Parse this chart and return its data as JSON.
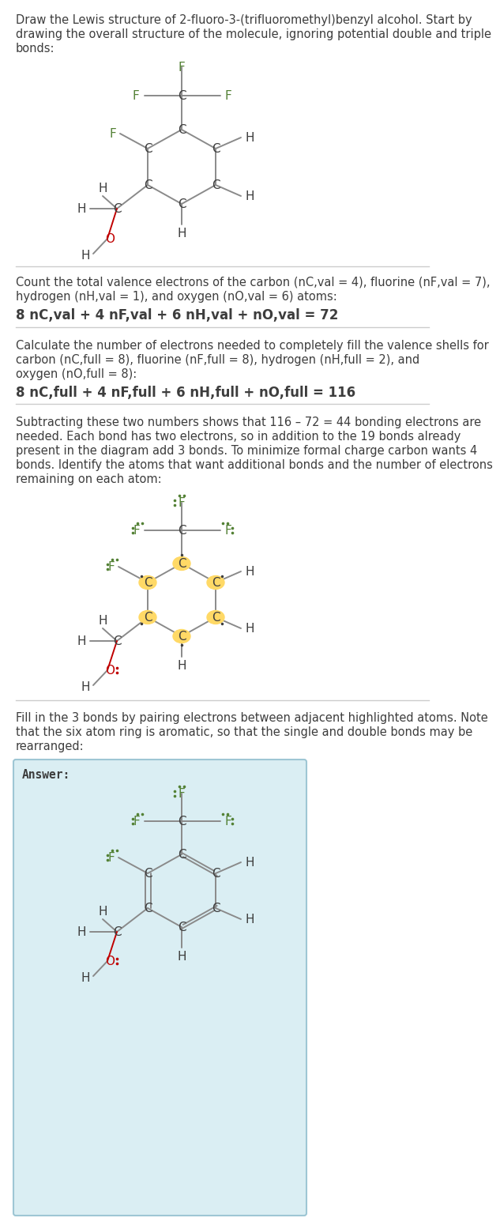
{
  "bg_color": "#ffffff",
  "text_color": "#3d3d3d",
  "C_color": "#3d3d3d",
  "F_color": "#538135",
  "H_color": "#3d3d3d",
  "O_color": "#c00000",
  "bond_color": "#8a8a8a",
  "highlight_color": "#ffd966",
  "answer_bg": "#daeef3",
  "answer_border": "#9ec6d4",
  "divider_color": "#cccccc",
  "title_lines": [
    "Draw the Lewis structure of 2-fluoro-3-(trifluoromethyl)benzyl alcohol. Start by",
    "drawing the overall structure of the molecule, ignoring potential double and triple",
    "bonds:"
  ],
  "s1_lines": [
    "Count the total valence electrons of the carbon (nC,val = 4), fluorine (nF,val = 7),",
    "hydrogen (nH,val = 1), and oxygen (nO,val = 6) atoms:"
  ],
  "s1_formula": "8 nC,val + 4 nF,val + 6 nH,val + nO,val = 72",
  "s2_lines": [
    "Calculate the number of electrons needed to completely fill the valence shells for",
    "carbon (nC,full = 8), fluorine (nF,full = 8), hydrogen (nH,full = 2), and",
    "oxygen (nO,full = 8):"
  ],
  "s2_formula": "8 nC,full + 4 nF,full + 6 nH,full + nO,full = 116",
  "s3_lines": [
    "Subtracting these two numbers shows that 116 – 72 = 44 bonding electrons are",
    "needed. Each bond has two electrons, so in addition to the 19 bonds already",
    "present in the diagram add 3 bonds. To minimize formal charge carbon wants 4",
    "bonds. Identify the atoms that want additional bonds and the number of electrons",
    "remaining on each atom:"
  ],
  "s4_lines": [
    "Fill in the 3 bonds by pairing electrons between adjacent highlighted atoms. Note",
    "that the six atom ring is aromatic, so that the single and double bonds may be",
    "rearranged:"
  ],
  "answer_label": "Answer:"
}
